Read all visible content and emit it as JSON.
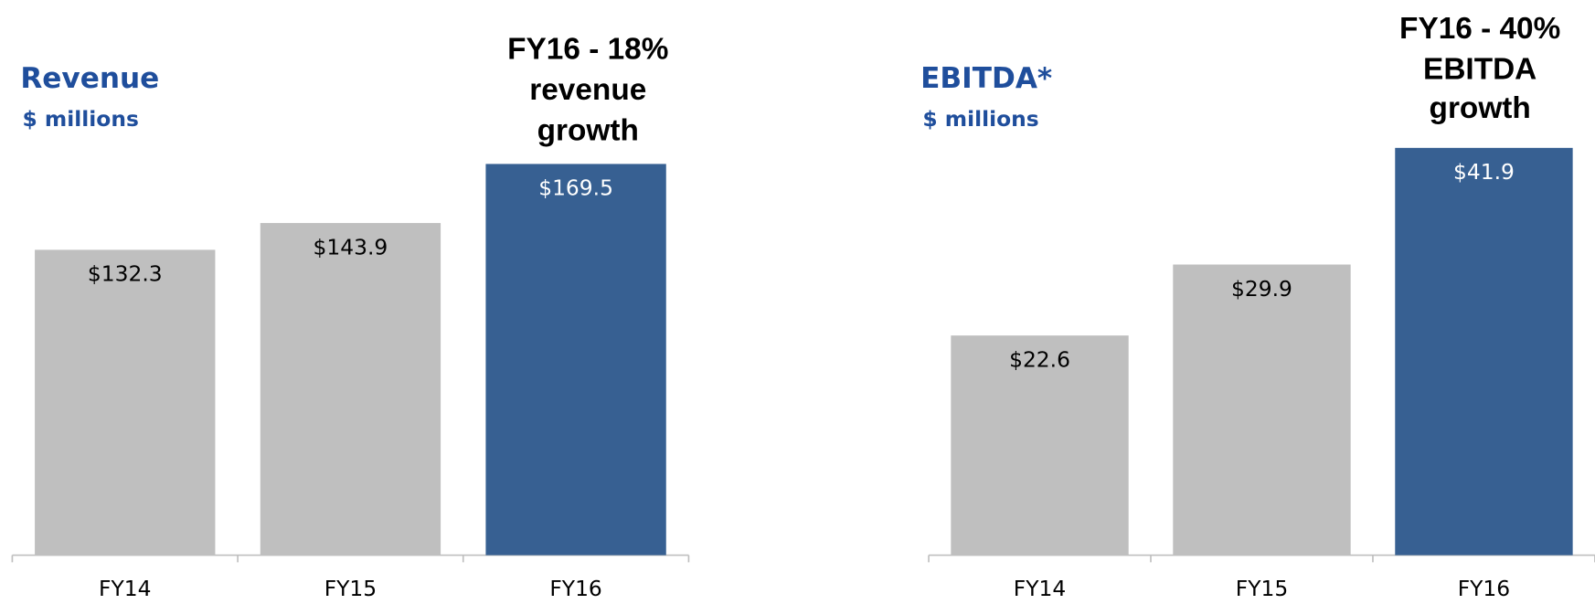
{
  "chart_data": [
    {
      "type": "bar",
      "title": "Revenue",
      "subtitle": "$ millions",
      "annotation": [
        "FY16 - 18%",
        "revenue",
        "growth"
      ],
      "categories": [
        "FY14",
        "FY15",
        "FY16"
      ],
      "values": [
        132.3,
        143.9,
        169.5
      ],
      "value_labels": [
        "$132.3",
        "$143.9",
        "$169.5"
      ],
      "colors": [
        "#bfbfbf",
        "#bfbfbf",
        "#376092"
      ],
      "ylim": [
        0,
        200
      ]
    },
    {
      "type": "bar",
      "title": "EBITDA*",
      "subtitle": "$ millions",
      "annotation": [
        "FY16 - 40%",
        "EBITDA",
        "growth"
      ],
      "categories": [
        "FY14",
        "FY15",
        "FY16"
      ],
      "values": [
        22.6,
        29.9,
        41.9
      ],
      "value_labels": [
        "$22.6",
        "$29.9",
        "$41.9"
      ],
      "colors": [
        "#bfbfbf",
        "#bfbfbf",
        "#376092"
      ],
      "ylim": [
        0,
        50
      ]
    }
  ]
}
